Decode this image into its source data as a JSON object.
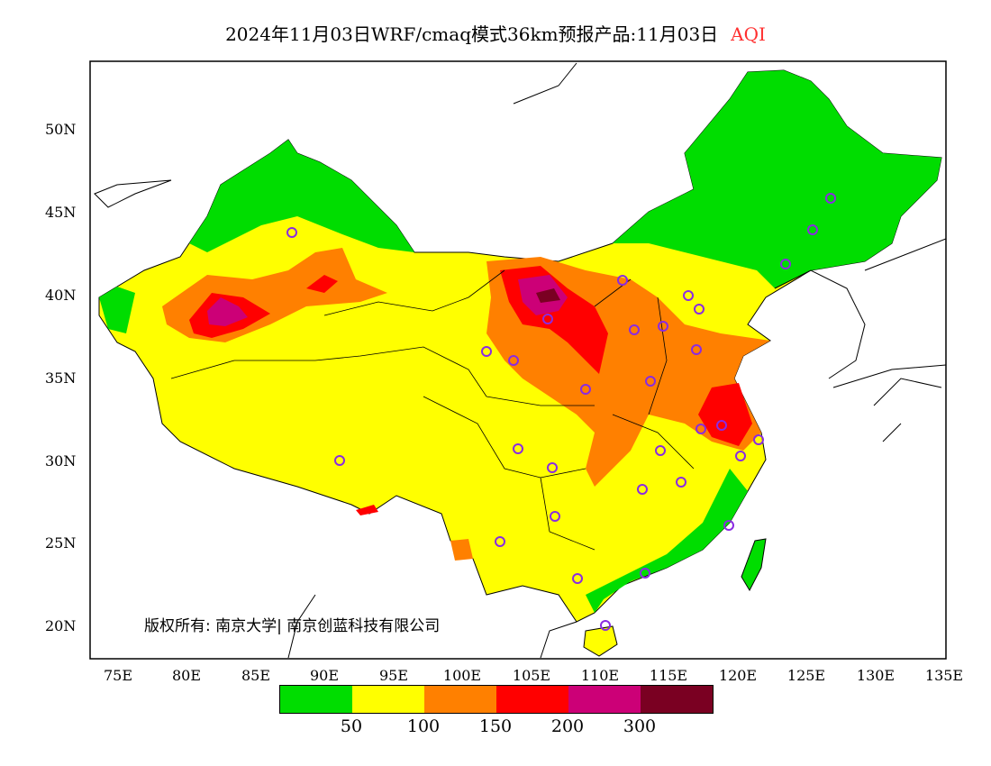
{
  "title": {
    "main": "2024年11月03日WRF/cmaq模式36km预报产品:11月03日",
    "variable": "AQI"
  },
  "lat_ticks": [
    "50N",
    "45N",
    "40N",
    "35N",
    "30N",
    "25N",
    "20N"
  ],
  "lon_ticks": [
    "75E",
    "80E",
    "85E",
    "90E",
    "95E",
    "100E",
    "105E",
    "110E",
    "115E",
    "120E",
    "125E",
    "130E",
    "135E"
  ],
  "copyright": "版权所有: 南京大学| 南京创蓝科技有限公司",
  "legend": {
    "colors": [
      "#00dd00",
      "#ffff00",
      "#ff8000",
      "#ff0000",
      "#cc0077",
      "#7a0022"
    ],
    "labels": [
      "50",
      "100",
      "150",
      "200",
      "300"
    ]
  }
}
